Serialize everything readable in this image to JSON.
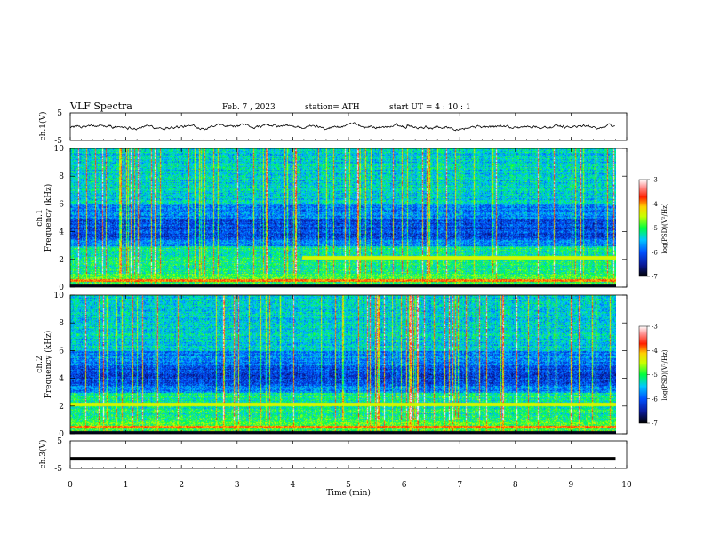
{
  "header": {
    "title": "VLF  Spectra",
    "date": "Feb. 7  , 2023",
    "station": "station= ATH",
    "start": "start  UT  =   4  : 10 : 1"
  },
  "chart_data": [
    {
      "type": "line",
      "name": "ch1-waveform",
      "ylabel": "ch.1(V)",
      "ylim": [
        -5,
        5
      ],
      "yticks": [
        "5",
        "-5"
      ],
      "xlim": [
        0,
        10
      ]
    },
    {
      "type": "heatmap",
      "name": "ch1-spectrogram",
      "ylabel": "ch.1\nFrequency (kHz)",
      "ylabel_line1": "ch.1",
      "ylabel_line2": "Frequency (kHz)",
      "ylim": [
        0,
        10
      ],
      "yticks": [
        "0",
        "2",
        "4",
        "6",
        "8",
        "10"
      ],
      "xlim": [
        0,
        10
      ],
      "data_end_min": 9.8,
      "colorbar": {
        "label": "log(PSD)(V²/Hz)",
        "range": [
          -7,
          -3
        ],
        "ticks": [
          "-3",
          "-4",
          "-5",
          "-6",
          "-7"
        ]
      }
    },
    {
      "type": "heatmap",
      "name": "ch2-spectrogram",
      "ylabel_line1": "ch.2",
      "ylabel_line2": "Frequency (kHz)",
      "ylim": [
        0,
        10
      ],
      "yticks": [
        "0",
        "2",
        "4",
        "6",
        "8",
        "10"
      ],
      "xlim": [
        0,
        10
      ],
      "data_end_min": 9.8,
      "colorbar": {
        "label": "log(PSD)(V²/Hz)",
        "range": [
          -7,
          -3
        ],
        "ticks": [
          "-3",
          "-4",
          "-5",
          "-6",
          "-7"
        ]
      }
    },
    {
      "type": "line",
      "name": "ch3-waveform",
      "ylabel": "ch.3(V)",
      "ylim": [
        -5,
        5
      ],
      "yticks": [
        "5",
        "-5"
      ],
      "xlim": [
        0,
        10
      ],
      "level": -1.5
    }
  ],
  "xaxis": {
    "label": "Time  (min)",
    "ticks": [
      "0",
      "1",
      "2",
      "3",
      "4",
      "5",
      "6",
      "7",
      "8",
      "9",
      "10"
    ]
  },
  "colors": {
    "frame": "#000000",
    "trace": "#000000"
  }
}
